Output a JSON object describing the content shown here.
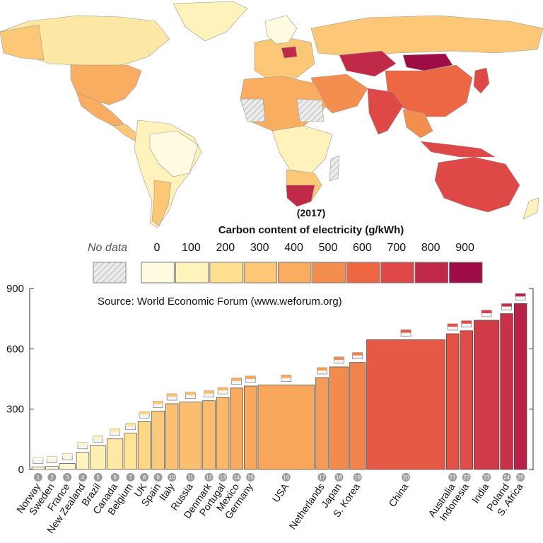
{
  "chart_data": {
    "type": "bar",
    "title_year": "(2017)",
    "title": "Carbon content of electricity (g/kWh)",
    "source": "Source: World Economic Forum (www.weforum.org)",
    "legend": {
      "no_data_label": "No data",
      "scale_labels": [
        "0",
        "100",
        "200",
        "300",
        "400",
        "500",
        "600",
        "700",
        "800",
        "900"
      ],
      "bin_colors": [
        "#fffbe0",
        "#fff2bb",
        "#ffe08e",
        "#fcc777",
        "#f9ad60",
        "#f48e4f",
        "#ed6743",
        "#de4847",
        "#c02948",
        "#9e0d46"
      ]
    },
    "ylim": [
      0,
      900
    ],
    "yticks": [
      "0",
      "300",
      "600",
      "900"
    ],
    "bars": [
      {
        "rank": "1",
        "country": "Norway",
        "value": 12,
        "share": 2
      },
      {
        "rank": "2",
        "country": "Sweden",
        "value": 15,
        "share": 2
      },
      {
        "rank": "3",
        "country": "France",
        "value": 30,
        "share": 2.5
      },
      {
        "rank": "4",
        "country": "New Zealand",
        "value": 85,
        "share": 2
      },
      {
        "rank": "5",
        "country": "Brazil",
        "value": 118,
        "share": 2.5
      },
      {
        "rank": "6",
        "country": "Canada",
        "value": 152,
        "share": 2.5
      },
      {
        "rank": "7",
        "country": "Belgium",
        "value": 180,
        "share": 2
      },
      {
        "rank": "8",
        "country": "UK",
        "value": 238,
        "share": 2
      },
      {
        "rank": "9",
        "country": "Spain",
        "value": 290,
        "share": 2
      },
      {
        "rank": "10",
        "country": "Italy",
        "value": 327,
        "share": 2
      },
      {
        "rank": "11",
        "country": "Russia",
        "value": 335,
        "share": 3.5
      },
      {
        "rank": "12",
        "country": "Denmark",
        "value": 342,
        "share": 2
      },
      {
        "rank": "13",
        "country": "Portugal",
        "value": 358,
        "share": 2
      },
      {
        "rank": "14",
        "country": "Mexico",
        "value": 405,
        "share": 2
      },
      {
        "rank": "15",
        "country": "Germany",
        "value": 415,
        "share": 2
      },
      {
        "rank": "16",
        "country": "USA",
        "value": 420,
        "share": 9
      },
      {
        "rank": "17",
        "country": "Netherlands",
        "value": 457,
        "share": 2
      },
      {
        "rank": "18",
        "country": "Japan",
        "value": 510,
        "share": 3
      },
      {
        "rank": "19",
        "country": "S. Korea",
        "value": 532,
        "share": 2.5
      },
      {
        "rank": "20",
        "country": "China",
        "value": 645,
        "share": 12.5
      },
      {
        "rank": "21",
        "country": "Australia",
        "value": 675,
        "share": 2
      },
      {
        "rank": "22",
        "country": "Indonesia",
        "value": 690,
        "share": 2
      },
      {
        "rank": "23",
        "country": "India",
        "value": 742,
        "share": 4
      },
      {
        "rank": "24",
        "country": "Poland",
        "value": 775,
        "share": 2
      },
      {
        "rank": "25",
        "country": "S. Africa",
        "value": 825,
        "share": 2
      }
    ]
  }
}
